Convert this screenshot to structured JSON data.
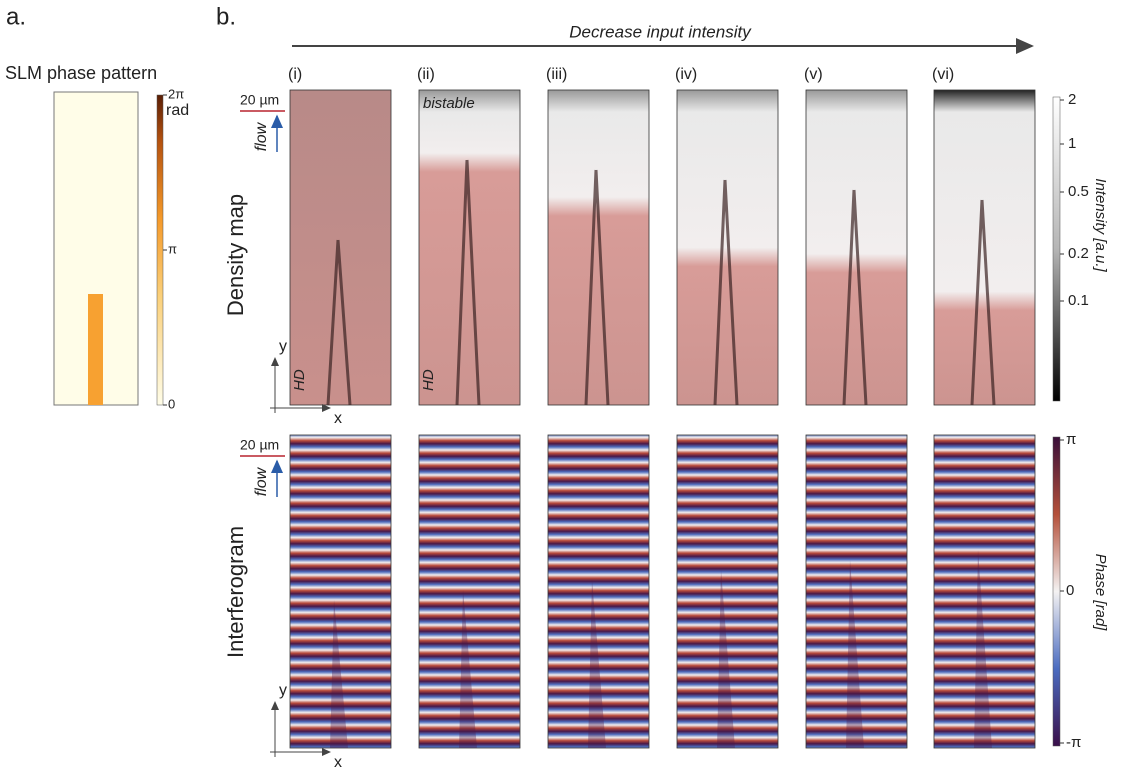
{
  "panel_a": {
    "label": "a.",
    "title": "SLM phase pattern",
    "colorbar_ticks": [
      "2π",
      "π",
      "0"
    ],
    "colorbar_unit": "rad"
  },
  "panel_b": {
    "label": "b.",
    "arrow_label": "Decrease input intensity",
    "columns": [
      "(i)",
      "(ii)",
      "(iii)",
      "(iv)",
      "(v)",
      "(vi)"
    ],
    "rows": [
      "Density map",
      "Interferogram"
    ],
    "scale_bar": "20 µm",
    "flow": "flow",
    "bistable": "bistable",
    "hd": "HD",
    "axis_x": "x",
    "axis_y": "y",
    "intensity_colorbar": {
      "ticks": [
        "2",
        "1",
        "0.5",
        "0.2",
        "0.1"
      ],
      "label": "Intensity [a.u.]"
    },
    "phase_colorbar": {
      "ticks": [
        "π",
        "0",
        "-π"
      ],
      "label": "Phase [rad]"
    }
  }
}
